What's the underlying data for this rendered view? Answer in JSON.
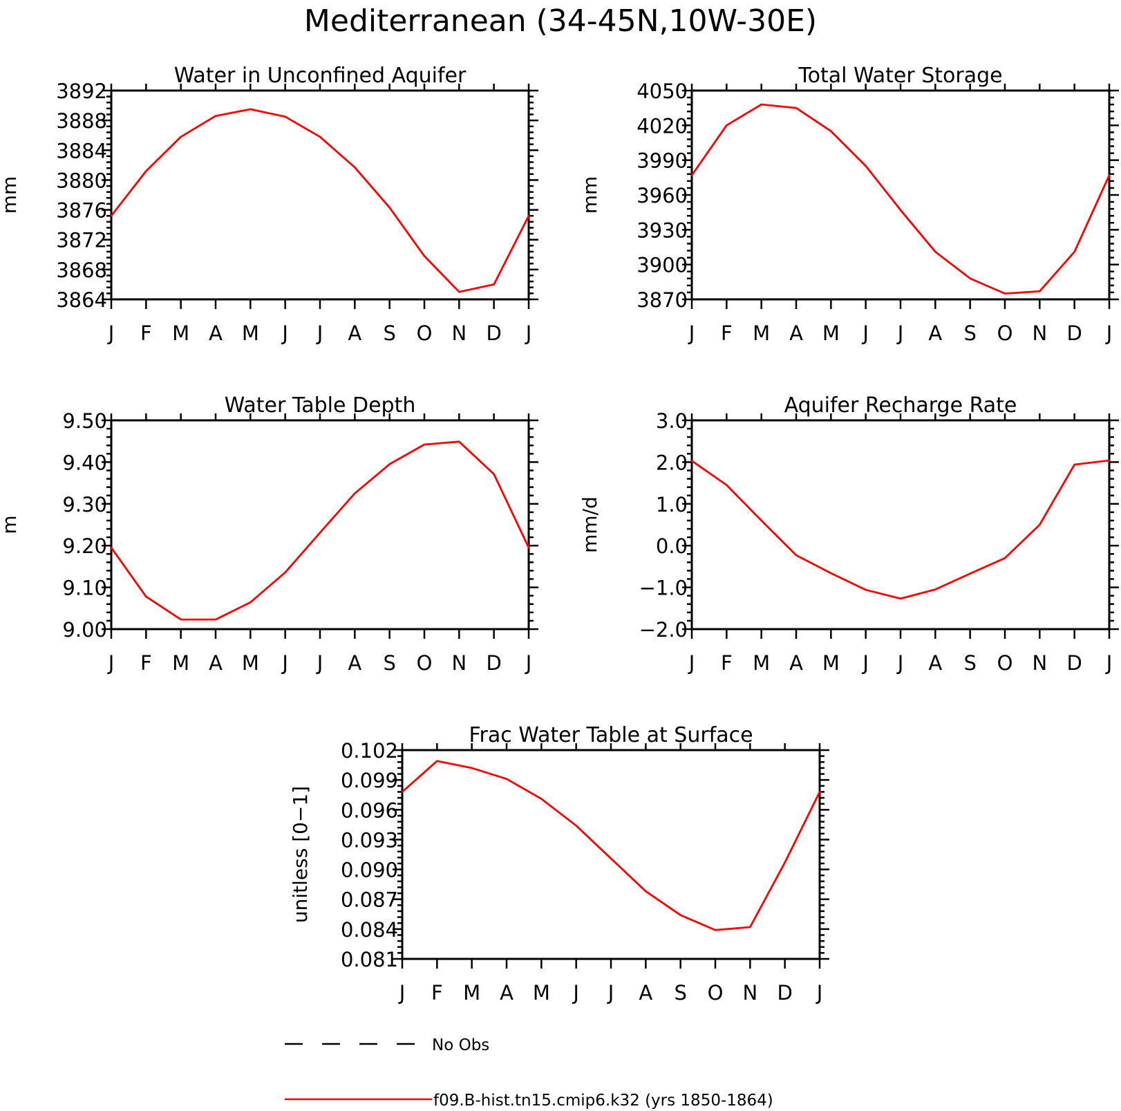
{
  "figure": {
    "title": "Mediterranean (34-45N,10W-30E)"
  },
  "months": [
    "J",
    "F",
    "M",
    "A",
    "M",
    "J",
    "J",
    "A",
    "S",
    "O",
    "N",
    "D",
    "J"
  ],
  "legend": {
    "items": [
      {
        "label": "No Obs",
        "style": "dashed",
        "color": "#000000"
      },
      {
        "label": "f09.B-hist.tn15.cmip6.k32 (yrs 1850-1864)",
        "style": "solid",
        "color": "#ff0000"
      }
    ]
  },
  "chart_data": [
    {
      "type": "line",
      "title": "Water in Unconfined Aquifer",
      "ylabel": "mm",
      "ylim": [
        3864,
        3892
      ],
      "yticks": [
        3864,
        3868,
        3872,
        3876,
        3880,
        3884,
        3888,
        3892
      ],
      "ytick_labels": [
        "3864",
        "3868",
        "3872",
        "3876",
        "3880",
        "3884",
        "3888",
        "3892"
      ],
      "x": [
        "J",
        "F",
        "M",
        "A",
        "M",
        "J",
        "J",
        "A",
        "S",
        "O",
        "N",
        "D",
        "J"
      ],
      "series": [
        {
          "color": "#ff0000",
          "values": [
            3875.2,
            3881.2,
            3885.8,
            3888.6,
            3889.5,
            3888.5,
            3885.8,
            3881.7,
            3876.3,
            3869.8,
            3865.0,
            3866.0,
            3875.2
          ]
        }
      ]
    },
    {
      "type": "line",
      "title": "Total Water Storage",
      "ylabel": "mm",
      "ylim": [
        3870,
        4050
      ],
      "yticks": [
        3870,
        3900,
        3930,
        3960,
        3990,
        4020,
        4050
      ],
      "ytick_labels": [
        "3870",
        "3900",
        "3930",
        "3960",
        "3990",
        "4020",
        "4050"
      ],
      "x": [
        "J",
        "F",
        "M",
        "A",
        "M",
        "J",
        "J",
        "A",
        "S",
        "O",
        "N",
        "D",
        "J"
      ],
      "series": [
        {
          "color": "#ff0000",
          "values": [
            3977,
            4020,
            4038,
            4035,
            4015,
            3985,
            3947,
            3911,
            3888,
            3875,
            3877,
            3911,
            3977
          ]
        }
      ]
    },
    {
      "type": "line",
      "title": "Water Table Depth",
      "ylabel": "m",
      "ylim": [
        9.0,
        9.5
      ],
      "yticks": [
        9.0,
        9.1,
        9.2,
        9.3,
        9.4,
        9.5
      ],
      "ytick_labels": [
        "9.00",
        "9.10",
        "9.20",
        "9.30",
        "9.40",
        "9.50"
      ],
      "x": [
        "J",
        "F",
        "M",
        "A",
        "M",
        "J",
        "J",
        "A",
        "S",
        "O",
        "N",
        "D",
        "J"
      ],
      "series": [
        {
          "color": "#ff0000",
          "values": [
            9.195,
            9.078,
            9.023,
            9.023,
            9.064,
            9.136,
            9.231,
            9.325,
            9.395,
            9.442,
            9.449,
            9.371,
            9.195
          ]
        }
      ]
    },
    {
      "type": "line",
      "title": "Aquifer Recharge Rate",
      "ylabel": "mm/d",
      "ylim": [
        -2.0,
        3.0
      ],
      "yticks": [
        -2.0,
        -1.0,
        0.0,
        1.0,
        2.0,
        3.0
      ],
      "ytick_labels": [
        "-2.0",
        "-1.0",
        "0.0",
        "1.0",
        "2.0",
        "3.0"
      ],
      "x": [
        "J",
        "F",
        "M",
        "A",
        "M",
        "J",
        "J",
        "A",
        "S",
        "O",
        "N",
        "D",
        "J"
      ],
      "series": [
        {
          "color": "#ff0000",
          "values": [
            2.03,
            1.45,
            0.6,
            -0.23,
            -0.66,
            -1.06,
            -1.27,
            -1.05,
            -0.67,
            -0.3,
            0.5,
            1.94,
            2.04
          ]
        }
      ]
    },
    {
      "type": "line",
      "title": "Frac Water Table at Surface",
      "ylabel": "unitless [0-1]",
      "ylim": [
        0.081,
        0.102
      ],
      "yticks": [
        0.081,
        0.084,
        0.087,
        0.09,
        0.093,
        0.096,
        0.099,
        0.102
      ],
      "ytick_labels": [
        "0.081",
        "0.084",
        "0.087",
        "0.090",
        "0.093",
        "0.096",
        "0.099",
        "0.102"
      ],
      "x": [
        "J",
        "F",
        "M",
        "A",
        "M",
        "J",
        "J",
        "A",
        "S",
        "O",
        "N",
        "D",
        "J"
      ],
      "series": [
        {
          "color": "#ff0000",
          "values": [
            0.0978,
            0.1009,
            0.1002,
            0.0991,
            0.0971,
            0.0944,
            0.0911,
            0.0878,
            0.0854,
            0.0839,
            0.0842,
            0.0907,
            0.0978
          ]
        }
      ]
    }
  ]
}
